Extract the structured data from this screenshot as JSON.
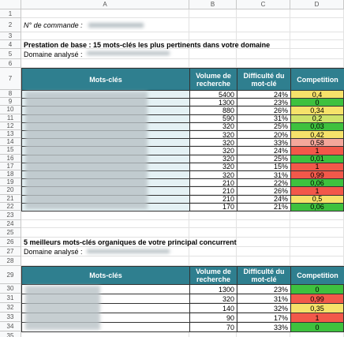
{
  "sheet": {
    "columns": [
      "A",
      "B",
      "C",
      "D"
    ],
    "row_numbers": [
      1,
      2,
      3,
      4,
      5,
      6,
      7,
      8,
      9,
      10,
      11,
      12,
      13,
      14,
      15,
      16,
      17,
      18,
      19,
      20,
      21,
      22,
      23,
      24,
      25,
      26,
      27,
      28,
      29,
      30,
      31,
      32,
      33,
      34,
      35
    ]
  },
  "order": {
    "label": "N° de commande :"
  },
  "table1": {
    "title": "Prestation de base : 15 mots-clés les plus pertinents dans votre domaine",
    "domain_label": "Domaine analysé :",
    "headers": [
      "Mots-clés",
      "Volume de recherche",
      "Difficulté du mot-clé",
      "Competition"
    ],
    "rows": [
      {
        "volume": "5400",
        "difficulty": "24%",
        "competition": "0,4",
        "color": "#f6e26a"
      },
      {
        "volume": "1300",
        "difficulty": "23%",
        "competition": "0",
        "color": "#3ec13e"
      },
      {
        "volume": "880",
        "difficulty": "26%",
        "competition": "0,34",
        "color": "#f6e26a"
      },
      {
        "volume": "590",
        "difficulty": "31%",
        "competition": "0,2",
        "color": "#cde36a"
      },
      {
        "volume": "320",
        "difficulty": "25%",
        "competition": "0,03",
        "color": "#3ec13e"
      },
      {
        "volume": "320",
        "difficulty": "20%",
        "competition": "0,42",
        "color": "#f6e26a"
      },
      {
        "volume": "320",
        "difficulty": "33%",
        "competition": "0,58",
        "color": "#f4a79b"
      },
      {
        "volume": "320",
        "difficulty": "24%",
        "competition": "1",
        "color": "#f2584a"
      },
      {
        "volume": "320",
        "difficulty": "25%",
        "competition": "0,01",
        "color": "#3ec13e"
      },
      {
        "volume": "320",
        "difficulty": "15%",
        "competition": "1",
        "color": "#f2584a"
      },
      {
        "volume": "320",
        "difficulty": "31%",
        "competition": "0,99",
        "color": "#f2584a"
      },
      {
        "volume": "210",
        "difficulty": "22%",
        "competition": "0,06",
        "color": "#3ec13e"
      },
      {
        "volume": "210",
        "difficulty": "26%",
        "competition": "1",
        "color": "#f2584a"
      },
      {
        "volume": "210",
        "difficulty": "24%",
        "competition": "0,5",
        "color": "#f6e26a"
      },
      {
        "volume": "170",
        "difficulty": "21%",
        "competition": "0,06",
        "color": "#3ec13e"
      }
    ]
  },
  "table2": {
    "title": "5 meilleurs mots-clés organiques de votre principal concurrent",
    "domain_label": "Domaine analysé :",
    "headers": [
      "Mots-clés",
      "Volume de recherche",
      "Difficulté du mot-clé",
      "Competition"
    ],
    "rows": [
      {
        "volume": "1300",
        "difficulty": "23%",
        "competition": "0",
        "color": "#3ec13e"
      },
      {
        "volume": "320",
        "difficulty": "31%",
        "competition": "0,99",
        "color": "#f2584a"
      },
      {
        "volume": "140",
        "difficulty": "32%",
        "competition": "0,35",
        "color": "#f6e26a"
      },
      {
        "volume": "90",
        "difficulty": "17%",
        "competition": "1",
        "color": "#f2584a"
      },
      {
        "volume": "70",
        "difficulty": "33%",
        "competition": "0",
        "color": "#3ec13e"
      }
    ]
  }
}
